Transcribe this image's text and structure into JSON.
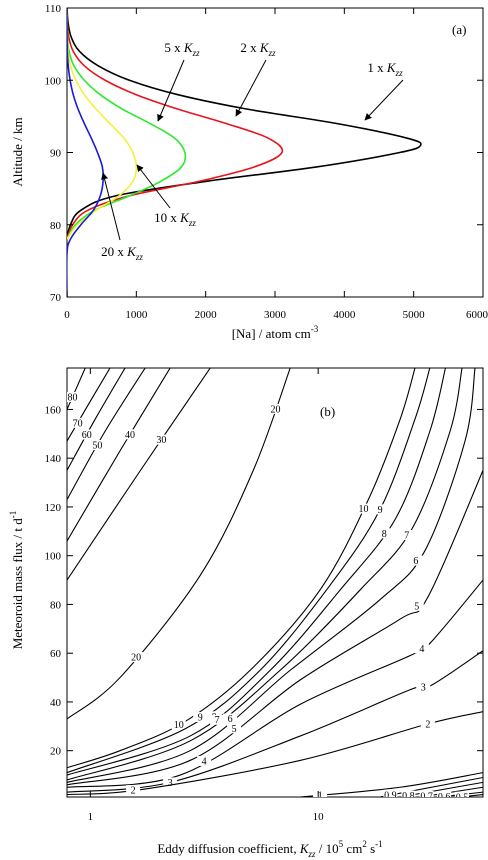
{
  "chart_data": [
    {
      "type": "line",
      "panel_label": "(a)",
      "x_label": [
        {
          "text": "[Na] / atom cm"
        },
        {
          "text": "-3",
          "shift": "sup"
        }
      ],
      "y_label": [
        {
          "text": "Altitude / km"
        }
      ],
      "xlim": [
        0,
        6000
      ],
      "xticks": [
        0,
        1000,
        2000,
        3000,
        4000,
        5000,
        6000
      ],
      "ylim": [
        70,
        110
      ],
      "yticks": [
        70,
        80,
        90,
        100,
        110
      ],
      "series": [
        {
          "label": [
            {
              "text": "1 x "
            },
            {
              "text": "K",
              "style": "italic"
            },
            {
              "text": "zz",
              "shift": "sub",
              "style": "italic"
            }
          ],
          "color": "#000000",
          "y": [
            78,
            80,
            82,
            84,
            86,
            88,
            90,
            91,
            92,
            94,
            96,
            98,
            100,
            102,
            104,
            106,
            108,
            110
          ],
          "x": [
            0,
            50,
            200,
            700,
            2000,
            3600,
            4800,
            5100,
            4900,
            3900,
            2600,
            1600,
            900,
            450,
            180,
            60,
            15,
            0
          ]
        },
        {
          "label": [
            {
              "text": "2 x "
            },
            {
              "text": "K",
              "style": "italic"
            },
            {
              "text": "zz",
              "shift": "sub",
              "style": "italic"
            }
          ],
          "color": "#e8141b",
          "y": [
            78,
            80,
            82,
            84,
            86,
            88,
            90,
            92,
            94,
            96,
            98,
            100,
            102,
            104,
            106,
            108,
            110
          ],
          "x": [
            0,
            80,
            300,
            900,
            1900,
            2700,
            3100,
            2900,
            2300,
            1600,
            1000,
            550,
            250,
            90,
            25,
            5,
            0
          ]
        },
        {
          "label": [
            {
              "text": "5 x "
            },
            {
              "text": "K",
              "style": "italic"
            },
            {
              "text": "zz",
              "shift": "sub",
              "style": "italic"
            }
          ],
          "color": "#2ee82e",
          "y": [
            78,
            80,
            82,
            84,
            86,
            88,
            90,
            92,
            94,
            96,
            98,
            100,
            102,
            104,
            106,
            110
          ],
          "x": [
            0,
            120,
            400,
            900,
            1350,
            1650,
            1700,
            1550,
            1200,
            800,
            480,
            250,
            100,
            30,
            8,
            0
          ]
        },
        {
          "label": [
            {
              "text": "10 x "
            },
            {
              "text": "K",
              "style": "italic"
            },
            {
              "text": "zz",
              "shift": "sub",
              "style": "italic"
            }
          ],
          "color": "#f2f23a",
          "y": [
            78,
            80,
            82,
            84,
            86,
            88,
            90,
            92,
            94,
            96,
            98,
            100,
            102,
            104,
            106,
            110
          ],
          "x": [
            0,
            150,
            420,
            750,
            950,
            1000,
            950,
            820,
            620,
            420,
            250,
            130,
            50,
            15,
            3,
            0
          ]
        },
        {
          "label": [
            {
              "text": "20 x "
            },
            {
              "text": "K",
              "style": "italic"
            },
            {
              "text": "zz",
              "shift": "sub",
              "style": "italic"
            }
          ],
          "color": "#1a1adc",
          "y": [
            70,
            76,
            78,
            80,
            82,
            84,
            86,
            88,
            90,
            92,
            94,
            96,
            98,
            100,
            102,
            104,
            106,
            110
          ],
          "x": [
            0,
            0,
            50,
            200,
            380,
            480,
            520,
            510,
            440,
            350,
            250,
            160,
            90,
            45,
            18,
            5,
            1,
            0
          ]
        }
      ]
    },
    {
      "type": "contour",
      "panel_label": "(b)",
      "x_label": [
        {
          "text": "Eddy diffusion coefficient, "
        },
        {
          "text": "K",
          "style": "italic"
        },
        {
          "text": "zz",
          "shift": "sub",
          "style": "italic"
        },
        {
          "text": " / 10"
        },
        {
          "text": "5",
          "shift": "sup"
        },
        {
          "text": " cm"
        },
        {
          "text": "2",
          "shift": "sup"
        },
        {
          "text": " s"
        },
        {
          "text": "-1",
          "shift": "sup"
        }
      ],
      "y_label": [
        {
          "text": "Meteoroid mass flux / t d"
        },
        {
          "text": "-1",
          "shift": "sup"
        }
      ],
      "xscale": "log",
      "xlim": [
        0.79,
        52.9
      ],
      "xticks": [
        1,
        10
      ],
      "ylim": [
        1,
        177
      ],
      "yticks": [
        20,
        40,
        60,
        80,
        100,
        120,
        140,
        160
      ],
      "color": "#000000",
      "contours": [
        {
          "level": 80,
          "x": [
            0.79,
            0.95
          ],
          "y": [
            160,
            177
          ]
        },
        {
          "level": 70,
          "x": [
            0.79,
            0.98,
            1.22
          ],
          "y": [
            147,
            162,
            177
          ]
        },
        {
          "level": 60,
          "x": [
            0.79,
            1.05,
            1.42
          ],
          "y": [
            135,
            156,
            177
          ]
        },
        {
          "level": 50,
          "x": [
            0.79,
            1.16,
            1.74
          ],
          "y": [
            123,
            151,
            177
          ]
        },
        {
          "level": 40,
          "x": [
            0.79,
            1.35,
            2.24
          ],
          "y": [
            106,
            143,
            177
          ]
        },
        {
          "level": 30,
          "x": [
            0.79,
            1.66,
            3.36
          ],
          "y": [
            90,
            135,
            177
          ]
        },
        {
          "level": 20,
          "x": [
            0.79,
            1.35,
            3.04,
            5.19,
            7.54
          ],
          "y": [
            33,
            50,
            92,
            135,
            177
          ]
        },
        {
          "level": 10,
          "x": [
            0.79,
            1.35,
            2.61,
            5.03,
            10.2,
            16.6,
            22.9,
            26.6
          ],
          "y": [
            13,
            20,
            32,
            53,
            86,
            123,
            156,
            177
          ]
        },
        {
          "level": 9,
          "x": [
            0.79,
            2.61,
            5.56,
            11.3,
            18.7,
            26.6,
            30.9
          ],
          "y": [
            11,
            29,
            53,
            88,
            119,
            156,
            177
          ]
        },
        {
          "level": 8,
          "x": [
            0.79,
            2.74,
            6.16,
            12.5,
            21.8,
            30.9,
            36.2
          ],
          "y": [
            10,
            26,
            53,
            86,
            115,
            151,
            177
          ]
        },
        {
          "level": 7,
          "x": [
            0.79,
            2.74,
            6.81,
            15.3,
            25.8,
            37.9,
            42.8
          ],
          "y": [
            8,
            24,
            53,
            86,
            111,
            151,
            177
          ]
        },
        {
          "level": 6,
          "x": [
            0.79,
            2.74,
            7.54,
            18.7,
            29.4,
            44.1,
            48.8
          ],
          "y": [
            7,
            20,
            53,
            82,
            102,
            147,
            177
          ]
        },
        {
          "level": 5,
          "x": [
            0.79,
            2.74,
            8.33,
            22.9,
            30.3,
            52.9
          ],
          "y": [
            6,
            16,
            49,
            74,
            83,
            135
          ]
        },
        {
          "level": 4,
          "x": [
            0.79,
            2.48,
            8.33,
            25.3,
            30.9,
            52.9
          ],
          "y": [
            5,
            10,
            39,
            59,
            64,
            90
          ]
        },
        {
          "level": 3,
          "x": [
            0.79,
            2.24,
            8.33,
            25.3,
            31.6,
            52.9
          ],
          "y": [
            3,
            7,
            26,
            45,
            47,
            61
          ]
        },
        {
          "level": 2,
          "x": [
            0.79,
            1.66,
            8.33,
            30.3,
            52.9
          ],
          "y": [
            2,
            4,
            16,
            31,
            36
          ]
        },
        {
          "level": 1,
          "x": [
            8.33,
            22.9,
            52.9
          ],
          "y": [
            1,
            5,
            11
          ]
        },
        {
          "level": 0.9,
          "x": [
            18.7,
            52.9
          ],
          "y": [
            1,
            9
          ]
        },
        {
          "level": 0.8,
          "x": [
            22.9,
            52.9
          ],
          "y": [
            1,
            7
          ]
        },
        {
          "level": 0.7,
          "x": [
            28.1,
            52.9
          ],
          "y": [
            1,
            5
          ]
        },
        {
          "level": 0.6,
          "x": [
            34.2,
            52.9
          ],
          "y": [
            1,
            3
          ]
        },
        {
          "level": 0.5,
          "x": [
            41.8,
            52.9
          ],
          "y": [
            1,
            2
          ]
        }
      ]
    }
  ]
}
